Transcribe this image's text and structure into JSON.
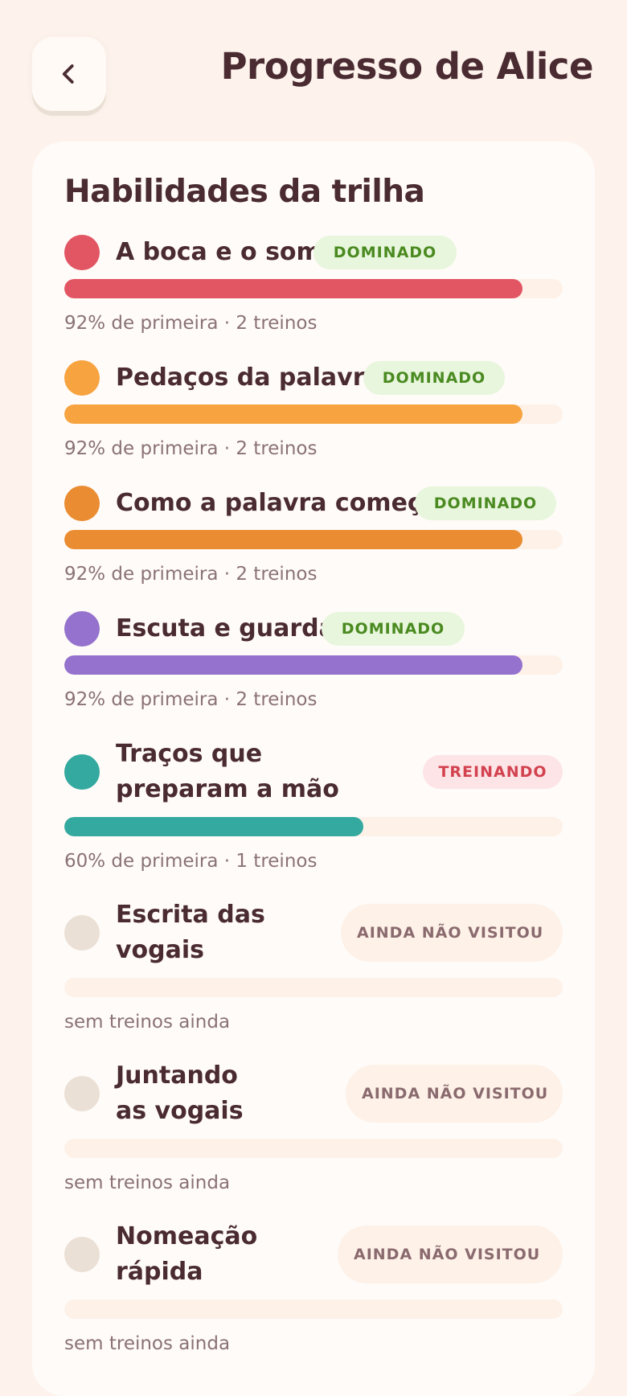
{
  "header": {
    "back_icon": "chevron-left-icon",
    "title": "Progresso de Alice"
  },
  "card": {
    "title": "Habilidades da trilha"
  },
  "colors": {
    "mastered_badge_bg": "#e7f6dc",
    "mastered_badge_text": "#4a8a20",
    "training_badge_bg": "#fde4e6",
    "training_badge_text": "#d2424f",
    "unvisited_dot": "#ebe0d5",
    "track": "#fdf1e8"
  },
  "skills": [
    {
      "name": "A boca e o som",
      "status": "DOMINADO",
      "status_kind": "mastered",
      "color": "#e25563",
      "progress": 0.92,
      "meta": "92% de primeira · 2 treinos"
    },
    {
      "name": "Pedaços da palavra",
      "status": "DOMINADO",
      "status_kind": "mastered",
      "color": "#f6a340",
      "progress": 0.92,
      "meta": "92% de primeira · 2 treinos"
    },
    {
      "name": "Como a palavra começa",
      "status": "DOMINADO",
      "status_kind": "mastered",
      "color": "#ea8c31",
      "progress": 0.92,
      "meta": "92% de primeira · 2 treinos"
    },
    {
      "name": "Escuta e guarda",
      "status": "DOMINADO",
      "status_kind": "mastered",
      "color": "#9572cd",
      "progress": 0.92,
      "meta": "92% de primeira · 2 treinos"
    },
    {
      "name": "Traços que preparam a mão",
      "status": "TREINANDO",
      "status_kind": "training",
      "color": "#34a99f",
      "progress": 0.6,
      "meta": "60% de primeira · 1 treinos"
    },
    {
      "name": "Escrita das vogais",
      "status": "AINDA NÃO VISITOU",
      "status_kind": "unvisited",
      "color": "#ebe0d5",
      "progress": 0,
      "meta": "sem treinos ainda"
    },
    {
      "name": "Juntando as vogais",
      "status": "AINDA NÃO VISITOU",
      "status_kind": "unvisited",
      "color": "#ebe0d5",
      "progress": 0,
      "meta": "sem treinos ainda"
    },
    {
      "name": "Nomeação rápida",
      "status": "AINDA NÃO VISITOU",
      "status_kind": "unvisited",
      "color": "#ebe0d5",
      "progress": 0,
      "meta": "sem treinos ainda"
    }
  ]
}
